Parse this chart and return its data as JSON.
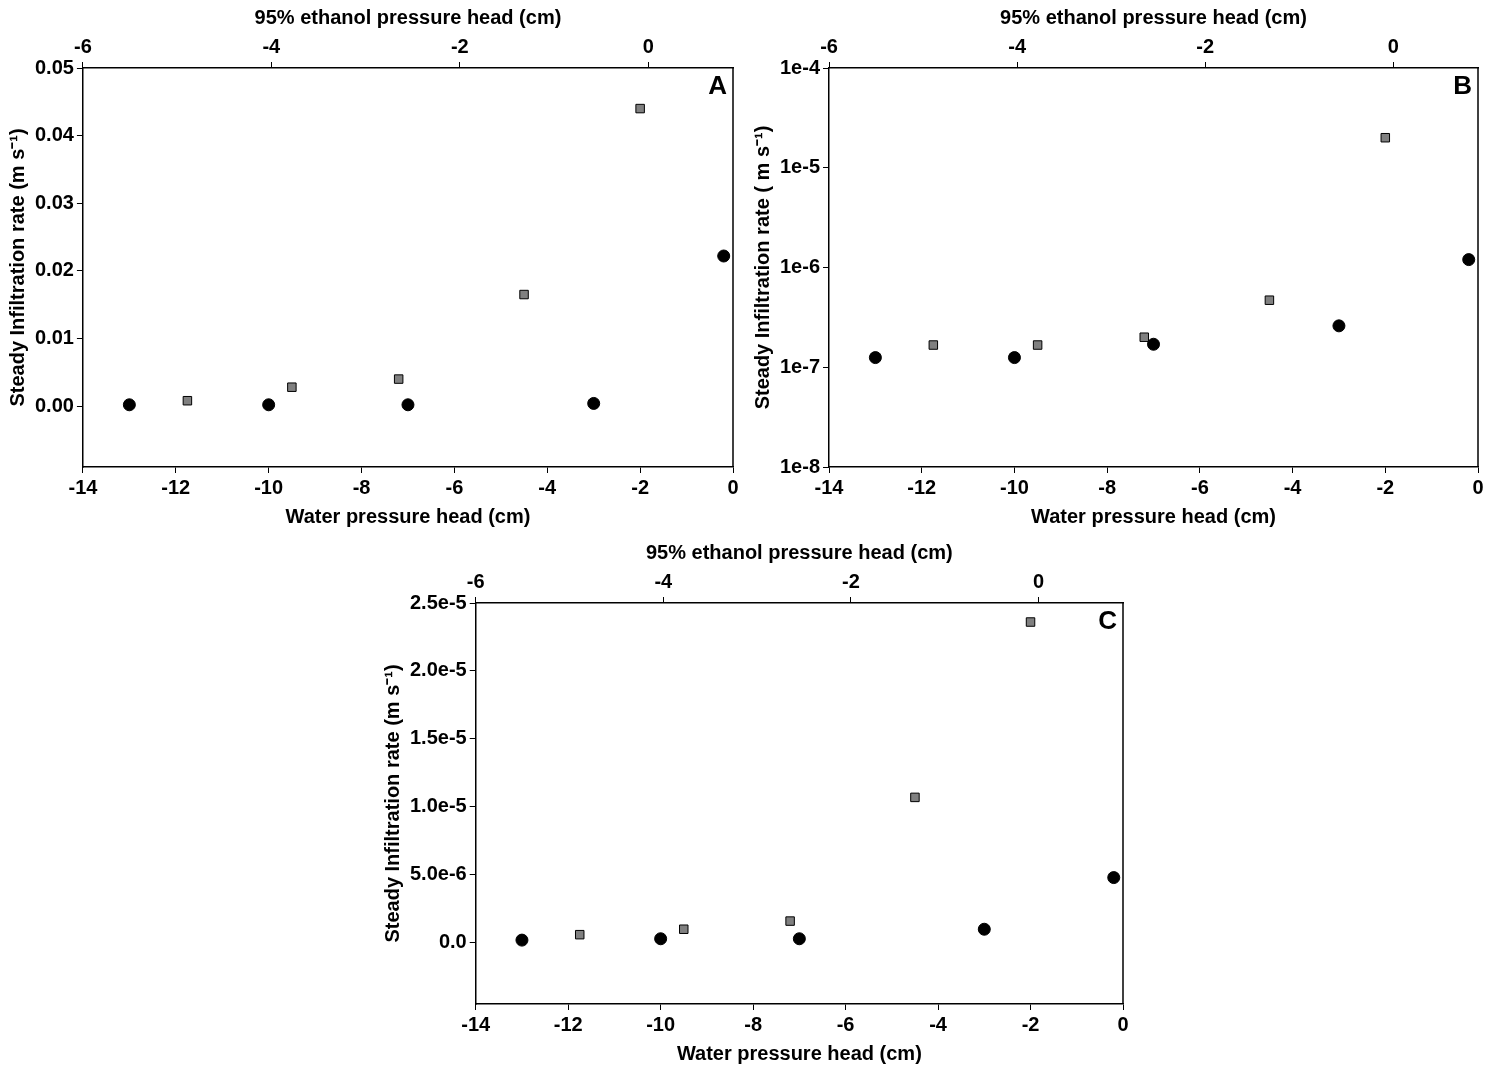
{
  "chart_data": [
    {
      "type": "scatter",
      "xlabel": "Water pressure head (cm)",
      "ylabel": "Steady Infiltration rate (m s⁻¹)",
      "x2label": "95% ethanol pressure head (cm)",
      "annotations": [
        "A"
      ],
      "xlim": [
        -14,
        0
      ],
      "xticks": [
        -14,
        -12,
        -10,
        -8,
        -6,
        -4,
        -2,
        0
      ],
      "x2lim": [
        -6,
        0.9
      ],
      "x2ticks": [
        -6,
        -4,
        -2,
        0
      ],
      "ylim": [
        -0.009,
        0.05
      ],
      "yticks": [
        {
          "value": 0,
          "label": "0.00"
        },
        {
          "value": 0.01,
          "label": "0.01"
        },
        {
          "value": 0.02,
          "label": "0.02"
        },
        {
          "value": 0.03,
          "label": "0.03"
        },
        {
          "value": 0.04,
          "label": "0.04"
        },
        {
          "value": 0.05,
          "label": "0.05"
        }
      ],
      "grid": false,
      "legend": false,
      "series": [
        {
          "color": "#000000",
          "marker": "circle",
          "x": [
            -13,
            -10,
            -7,
            -3,
            -0.2
          ],
          "values": [
            0.0002,
            0.0002,
            0.0002,
            0.0004,
            0.0222
          ]
        },
        {
          "color": "#808080",
          "marker": "square",
          "x": [
            -11.75,
            -9.5,
            -7.2,
            -4.5,
            -2
          ],
          "values": [
            0.0008,
            0.0028,
            0.004,
            0.0165,
            0.044
          ]
        }
      ]
    },
    {
      "type": "scatter",
      "xlabel": "Water pressure head (cm)",
      "ylabel": "Steady Infiltration rate ( m s⁻¹)",
      "x2label": "95% ethanol pressure head (cm)",
      "annotations": [
        "B"
      ],
      "xlim": [
        -14,
        0
      ],
      "xticks": [
        -14,
        -12,
        -10,
        -8,
        -6,
        -4,
        -2,
        0
      ],
      "x2lim": [
        -6,
        0.9
      ],
      "x2ticks": [
        -6,
        -4,
        -2,
        0
      ],
      "log": "y",
      "ylim": [
        1e-08,
        0.0001
      ],
      "yticks": [
        {
          "value": 1e-08,
          "label": "1e-8"
        },
        {
          "value": 1e-07,
          "label": "1e-7"
        },
        {
          "value": 1e-06,
          "label": "1e-6"
        },
        {
          "value": 1e-05,
          "label": "1e-5"
        },
        {
          "value": 0.0001,
          "label": "1e-4"
        }
      ],
      "grid": false,
      "legend": false,
      "series": [
        {
          "color": "#000000",
          "marker": "circle",
          "x": [
            -13,
            -10,
            -7,
            -3,
            -0.2
          ],
          "values": [
            1.25e-07,
            1.25e-07,
            1.7e-07,
            2.6e-07,
            1.2e-06
          ]
        },
        {
          "color": "#808080",
          "marker": "square",
          "x": [
            -11.75,
            -9.5,
            -7.2,
            -4.5,
            -2
          ],
          "values": [
            1.67e-07,
            1.67e-07,
            2e-07,
            4.7e-07,
            2e-05
          ]
        }
      ]
    },
    {
      "type": "scatter",
      "xlabel": "Water pressure head (cm)",
      "ylabel": "Steady Infiltration rate (m s⁻¹)",
      "x2label": "95% ethanol pressure head (cm)",
      "annotations": [
        "C"
      ],
      "xlim": [
        -14,
        0
      ],
      "xticks": [
        -14,
        -12,
        -10,
        -8,
        -6,
        -4,
        -2,
        0
      ],
      "x2lim": [
        -6,
        0.9
      ],
      "x2ticks": [
        -6,
        -4,
        -2,
        0
      ],
      "ylim": [
        -4.5e-06,
        2.5e-05
      ],
      "yticks": [
        {
          "value": 0,
          "label": "0.0"
        },
        {
          "value": 5e-06,
          "label": "5.0e-6"
        },
        {
          "value": 1e-05,
          "label": "1.0e-5"
        },
        {
          "value": 1.5e-05,
          "label": "1.5e-5"
        },
        {
          "value": 2e-05,
          "label": "2.0e-5"
        },
        {
          "value": 2.5e-05,
          "label": "2.5e-5"
        }
      ],
      "grid": false,
      "legend": false,
      "series": [
        {
          "color": "#000000",
          "marker": "circle",
          "x": [
            -13,
            -10,
            -7,
            -3,
            -0.2
          ],
          "values": [
            2e-07,
            3e-07,
            3e-07,
            1e-06,
            4.8e-06
          ]
        },
        {
          "color": "#808080",
          "marker": "square",
          "x": [
            -11.75,
            -9.5,
            -7.2,
            -4.5,
            -2
          ],
          "values": [
            6e-07,
            1e-06,
            1.6e-06,
            1.07e-05,
            2.36e-05
          ]
        }
      ]
    }
  ]
}
